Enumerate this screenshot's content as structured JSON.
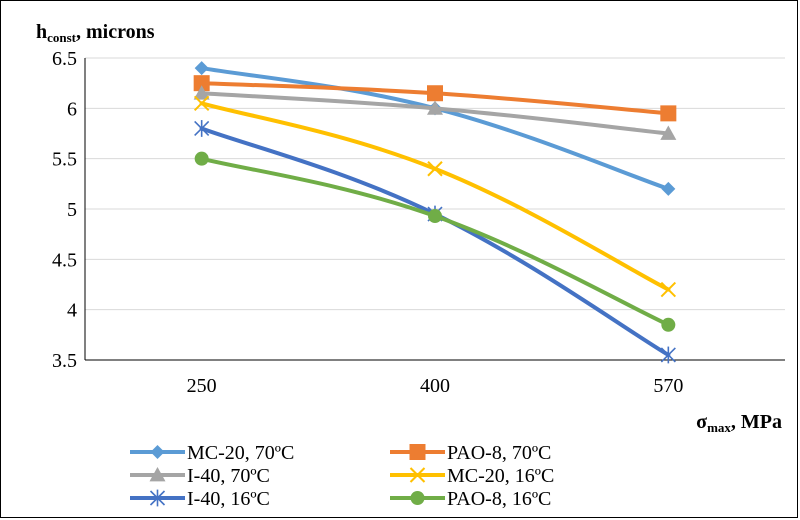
{
  "chart_data": {
    "type": "line",
    "categories": [
      "250",
      "400",
      "570"
    ],
    "ylim": [
      3.5,
      6.5
    ],
    "yticks": [
      "3.5",
      "4",
      "4.5",
      "5",
      "5.5",
      "6",
      "6.5"
    ],
    "y_title": {
      "main": "h",
      "sub": "const",
      "rest": ",  microns"
    },
    "x_title": {
      "main": "σ",
      "sub": "max",
      "rest": ",  MPa"
    },
    "grid": "horizontal",
    "legend_position": "bottom",
    "series": [
      {
        "name": "MC-20, 70ºC",
        "values": [
          6.4,
          6.0,
          5.2
        ],
        "color": "#5B9BD5",
        "marker": "diamond"
      },
      {
        "name": "PAO-8, 70ºC",
        "values": [
          6.25,
          6.15,
          5.95
        ],
        "color": "#ED7D31",
        "marker": "square"
      },
      {
        "name": "I-40, 70ºC",
        "values": [
          6.15,
          6.0,
          5.75
        ],
        "color": "#A5A5A5",
        "marker": "triangle"
      },
      {
        "name": "MC-20, 16ºC",
        "values": [
          6.05,
          5.4,
          4.2
        ],
        "color": "#FFC000",
        "marker": "x"
      },
      {
        "name": "I-40, 16ºC",
        "values": [
          5.8,
          4.95,
          3.55
        ],
        "color": "#4472C4",
        "marker": "star"
      },
      {
        "name": "PAO-8, 16ºC",
        "values": [
          5.5,
          4.93,
          3.85
        ],
        "color": "#70AD47",
        "marker": "circle"
      }
    ]
  }
}
